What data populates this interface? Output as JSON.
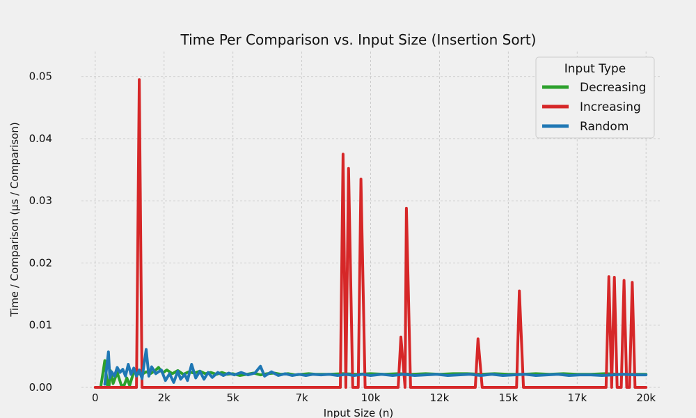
{
  "chart_data": {
    "type": "line",
    "title": "Time Per Comparison vs. Input Size (Insertion Sort)",
    "xlabel": "Input Size (n)",
    "ylabel": "Time / Comparison (μs / Comparison)",
    "xlim": [
      -500,
      20500
    ],
    "ylim": [
      0,
      0.054
    ],
    "xticks": [
      0,
      2500,
      5000,
      7500,
      10000,
      12500,
      15000,
      17500,
      20000
    ],
    "xtick_labels": [
      "0",
      "2k",
      "5k",
      "7k",
      "10k",
      "12k",
      "15k",
      "17k",
      "20k"
    ],
    "yticks": [
      0,
      0.01,
      0.02,
      0.03,
      0.04,
      0.05
    ],
    "ytick_labels": [
      "0.00",
      "0.01",
      "0.02",
      "0.03",
      "0.04",
      "0.05"
    ],
    "grid": true,
    "legend": {
      "title": "Input Type",
      "position": "top-right"
    },
    "series": [
      {
        "name": "Decreasing",
        "color": "#2ca02c",
        "points": [
          [
            200,
            0
          ],
          [
            350,
            0.0043
          ],
          [
            450,
            0
          ],
          [
            500,
            0.0001
          ],
          [
            550,
            0.0027
          ],
          [
            650,
            0.0006
          ],
          [
            800,
            0.0024
          ],
          [
            950,
            0.0003
          ],
          [
            1050,
            0.0003
          ],
          [
            1150,
            0.0015
          ],
          [
            1250,
            0.0003
          ],
          [
            1400,
            0.0025
          ],
          [
            1550,
            0.0022
          ],
          [
            1700,
            0.0021
          ],
          [
            1850,
            0.0025
          ],
          [
            2000,
            0.0022
          ],
          [
            2150,
            0.0026
          ],
          [
            2300,
            0.0032
          ],
          [
            2450,
            0.0023
          ],
          [
            2600,
            0.0028
          ],
          [
            2800,
            0.0022
          ],
          [
            3000,
            0.0027
          ],
          [
            3200,
            0.0021
          ],
          [
            3400,
            0.0025
          ],
          [
            3600,
            0.0023
          ],
          [
            3800,
            0.0026
          ],
          [
            4000,
            0.0022
          ],
          [
            4200,
            0.0024
          ],
          [
            4400,
            0.0021
          ],
          [
            4600,
            0.0024
          ],
          [
            4800,
            0.0021
          ],
          [
            5000,
            0.0022
          ],
          [
            5250,
            0.0019
          ],
          [
            5500,
            0.0021
          ],
          [
            5750,
            0.0023
          ],
          [
            6000,
            0.002
          ],
          [
            6250,
            0.0022
          ],
          [
            6500,
            0.0023
          ],
          [
            6750,
            0.0021
          ],
          [
            7000,
            0.0022
          ],
          [
            7250,
            0.002
          ],
          [
            7500,
            0.0021
          ],
          [
            7750,
            0.0022
          ],
          [
            8000,
            0.0021
          ],
          [
            8500,
            0.0021
          ],
          [
            9000,
            0.0022
          ],
          [
            9500,
            0.0021
          ],
          [
            10000,
            0.0022
          ],
          [
            10500,
            0.0021
          ],
          [
            11000,
            0.0022
          ],
          [
            11500,
            0.0021
          ],
          [
            12000,
            0.0022
          ],
          [
            12500,
            0.0021
          ],
          [
            13000,
            0.0022
          ],
          [
            13500,
            0.0022
          ],
          [
            14000,
            0.0021
          ],
          [
            14500,
            0.0022
          ],
          [
            15000,
            0.0021
          ],
          [
            15500,
            0.0021
          ],
          [
            16000,
            0.0022
          ],
          [
            16500,
            0.0021
          ],
          [
            17000,
            0.0022
          ],
          [
            17500,
            0.0021
          ],
          [
            18000,
            0.0021
          ],
          [
            18500,
            0.0022
          ],
          [
            19000,
            0.0021
          ],
          [
            19500,
            0.0021
          ],
          [
            20000,
            0.0021
          ]
        ]
      },
      {
        "name": "Increasing",
        "color": "#d62728",
        "points": [
          [
            0,
            0
          ],
          [
            1500,
            0
          ],
          [
            1600,
            0.0495
          ],
          [
            1700,
            0
          ],
          [
            8900,
            0
          ],
          [
            9000,
            0.0375
          ],
          [
            9100,
            0
          ],
          [
            9200,
            0.0352
          ],
          [
            9350,
            0
          ],
          [
            9550,
            0
          ],
          [
            9650,
            0.0335
          ],
          [
            9800,
            0
          ],
          [
            11000,
            0
          ],
          [
            11100,
            0.0081
          ],
          [
            11250,
            0
          ],
          [
            11300,
            0.0288
          ],
          [
            11450,
            0
          ],
          [
            13800,
            0
          ],
          [
            13900,
            0.0078
          ],
          [
            14050,
            0
          ],
          [
            15300,
            0
          ],
          [
            15400,
            0.0155
          ],
          [
            15550,
            0
          ],
          [
            18550,
            0
          ],
          [
            18650,
            0.0178
          ],
          [
            18750,
            0
          ],
          [
            18850,
            0.0177
          ],
          [
            18950,
            0
          ],
          [
            19100,
            0
          ],
          [
            19200,
            0.0172
          ],
          [
            19300,
            0
          ],
          [
            19400,
            0
          ],
          [
            19500,
            0.0169
          ],
          [
            19600,
            0
          ],
          [
            20000,
            0
          ]
        ]
      },
      {
        "name": "Random",
        "color": "#1f77b4",
        "points": [
          [
            350,
            0.0005
          ],
          [
            400,
            0.0025
          ],
          [
            480,
            0.0057
          ],
          [
            530,
            0.0015
          ],
          [
            600,
            0.0025
          ],
          [
            700,
            0.0018
          ],
          [
            800,
            0.0032
          ],
          [
            900,
            0.0024
          ],
          [
            1000,
            0.0029
          ],
          [
            1100,
            0.0018
          ],
          [
            1200,
            0.0037
          ],
          [
            1300,
            0.0021
          ],
          [
            1400,
            0.0031
          ],
          [
            1500,
            0.0018
          ],
          [
            1600,
            0.0028
          ],
          [
            1700,
            0.0014
          ],
          [
            1850,
            0.0061
          ],
          [
            1950,
            0.0018
          ],
          [
            2050,
            0.0033
          ],
          [
            2200,
            0.0022
          ],
          [
            2400,
            0.0028
          ],
          [
            2550,
            0.0011
          ],
          [
            2700,
            0.0022
          ],
          [
            2850,
            0.0008
          ],
          [
            3000,
            0.0026
          ],
          [
            3100,
            0.0013
          ],
          [
            3250,
            0.0021
          ],
          [
            3350,
            0.0011
          ],
          [
            3500,
            0.0037
          ],
          [
            3650,
            0.0015
          ],
          [
            3800,
            0.0026
          ],
          [
            3950,
            0.0013
          ],
          [
            4100,
            0.0024
          ],
          [
            4250,
            0.0016
          ],
          [
            4450,
            0.0024
          ],
          [
            4650,
            0.0019
          ],
          [
            4850,
            0.0023
          ],
          [
            5050,
            0.002
          ],
          [
            5300,
            0.0024
          ],
          [
            5550,
            0.002
          ],
          [
            5800,
            0.0023
          ],
          [
            6000,
            0.0034
          ],
          [
            6150,
            0.0018
          ],
          [
            6400,
            0.0025
          ],
          [
            6650,
            0.0019
          ],
          [
            6900,
            0.0022
          ],
          [
            7150,
            0.0019
          ],
          [
            7400,
            0.0021
          ],
          [
            7650,
            0.0019
          ],
          [
            7900,
            0.0021
          ],
          [
            8200,
            0.002
          ],
          [
            8500,
            0.0021
          ],
          [
            8800,
            0.0019
          ],
          [
            9100,
            0.0021
          ],
          [
            9400,
            0.0019
          ],
          [
            9700,
            0.0021
          ],
          [
            10000,
            0.0019
          ],
          [
            10400,
            0.0021
          ],
          [
            10800,
            0.0019
          ],
          [
            11200,
            0.0021
          ],
          [
            11600,
            0.0019
          ],
          [
            12000,
            0.002
          ],
          [
            12400,
            0.0021
          ],
          [
            12800,
            0.0019
          ],
          [
            13200,
            0.002
          ],
          [
            13600,
            0.0021
          ],
          [
            14000,
            0.0019
          ],
          [
            14400,
            0.0021
          ],
          [
            14800,
            0.0019
          ],
          [
            15200,
            0.002
          ],
          [
            15600,
            0.0021
          ],
          [
            16000,
            0.0019
          ],
          [
            16400,
            0.002
          ],
          [
            16800,
            0.0021
          ],
          [
            17200,
            0.0019
          ],
          [
            17600,
            0.002
          ],
          [
            18000,
            0.002
          ],
          [
            18400,
            0.0019
          ],
          [
            18800,
            0.002
          ],
          [
            19200,
            0.0021
          ],
          [
            19600,
            0.002
          ],
          [
            20000,
            0.002
          ]
        ]
      }
    ]
  }
}
